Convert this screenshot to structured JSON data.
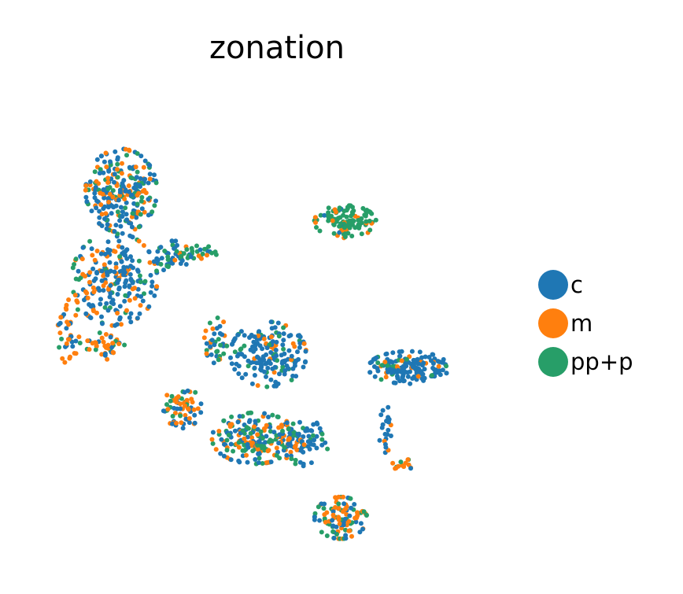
{
  "chart_data": {
    "type": "scatter",
    "title": "zonation",
    "xlabel": "",
    "ylabel": "",
    "grid": false,
    "axes_visible": false,
    "legend_position": "right",
    "point_size": 3,
    "xlim": [
      0,
      100
    ],
    "ylim": [
      0,
      100
    ],
    "colors": {
      "c": "#1f77b4",
      "m": "#ff7f0e",
      "pp+p": "#279e68"
    },
    "series": [
      {
        "name": "c",
        "color": "#1f77b4"
      },
      {
        "name": "m",
        "color": "#ff7f0e"
      },
      {
        "name": "pp+p",
        "color": "#279e68"
      }
    ],
    "clusters": [
      {
        "cx": 15.5,
        "cy": 80,
        "rx": 7.5,
        "ry": 9,
        "n": 260,
        "mix": [
          0.52,
          0.26,
          0.22
        ]
      },
      {
        "cx": 14,
        "cy": 60,
        "rx": 9,
        "ry": 10,
        "n": 230,
        "mix": [
          0.62,
          0.26,
          0.12
        ]
      },
      {
        "cx": 27,
        "cy": 65,
        "rx": 3.5,
        "ry": 3.5,
        "n": 50,
        "mix": [
          0.55,
          0.15,
          0.3
        ]
      },
      {
        "cx": 4,
        "cy": 48,
        "rx": 2.5,
        "ry": 7,
        "n": 40,
        "mix": [
          0.25,
          0.65,
          0.1
        ]
      },
      {
        "cx": 12,
        "cy": 45,
        "rx": 4,
        "ry": 3,
        "n": 40,
        "mix": [
          0.3,
          0.55,
          0.15
        ]
      },
      {
        "cx": 33,
        "cy": 66,
        "rx": 3.5,
        "ry": 1.5,
        "n": 25,
        "mix": [
          0.15,
          0.25,
          0.6
        ]
      },
      {
        "cx": 65,
        "cy": 73,
        "rx": 6.5,
        "ry": 3.5,
        "n": 110,
        "mix": [
          0.05,
          0.2,
          0.75
        ]
      },
      {
        "cx": 48,
        "cy": 43,
        "rx": 8,
        "ry": 7,
        "n": 180,
        "mix": [
          0.75,
          0.08,
          0.17
        ]
      },
      {
        "cx": 37,
        "cy": 46,
        "rx": 3,
        "ry": 5,
        "n": 40,
        "mix": [
          0.45,
          0.2,
          0.35
        ]
      },
      {
        "cx": 29,
        "cy": 31,
        "rx": 4,
        "ry": 4.5,
        "n": 70,
        "mix": [
          0.25,
          0.55,
          0.2
        ]
      },
      {
        "cx": 45,
        "cy": 24,
        "rx": 9,
        "ry": 5.5,
        "n": 200,
        "mix": [
          0.4,
          0.3,
          0.3
        ]
      },
      {
        "cx": 56,
        "cy": 23,
        "rx": 5,
        "ry": 5,
        "n": 80,
        "mix": [
          0.7,
          0.1,
          0.2
        ]
      },
      {
        "cx": 79,
        "cy": 40,
        "rx": 8.5,
        "ry": 3.5,
        "n": 170,
        "mix": [
          0.85,
          0.08,
          0.07
        ]
      },
      {
        "cx": 74,
        "cy": 26,
        "rx": 1.5,
        "ry": 5,
        "n": 22,
        "mix": [
          0.85,
          0.1,
          0.05
        ]
      },
      {
        "cx": 78,
        "cy": 18,
        "rx": 2.5,
        "ry": 1.2,
        "n": 14,
        "mix": [
          0.1,
          0.6,
          0.3
        ]
      },
      {
        "cx": 64,
        "cy": 6,
        "rx": 5.5,
        "ry": 4.5,
        "n": 110,
        "mix": [
          0.35,
          0.35,
          0.3
        ]
      }
    ]
  }
}
